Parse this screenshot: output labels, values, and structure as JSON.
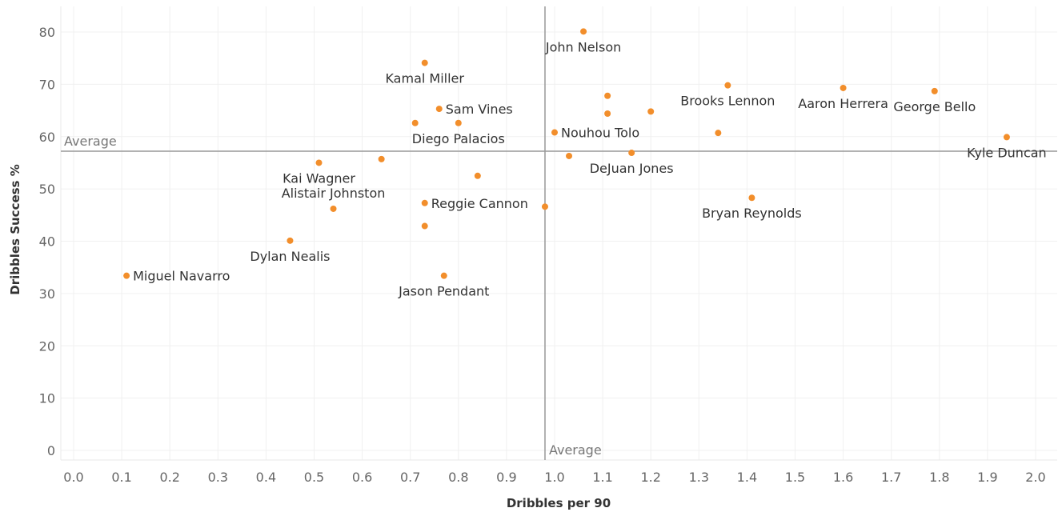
{
  "chart_data": {
    "type": "scatter",
    "xlabel": "Dribbles per 90",
    "ylabel": "Dribbles Success %",
    "xlim": [
      0.0,
      2.0
    ],
    "ylim": [
      0,
      80
    ],
    "x_ticks": [
      "0.0",
      "0.1",
      "0.2",
      "0.3",
      "0.4",
      "0.5",
      "0.6",
      "0.7",
      "0.8",
      "0.9",
      "1.0",
      "1.1",
      "1.2",
      "1.3",
      "1.4",
      "1.5",
      "1.6",
      "1.7",
      "1.8",
      "1.9",
      "2.0"
    ],
    "y_ticks": [
      "0",
      "10",
      "20",
      "30",
      "40",
      "50",
      "60",
      "70",
      "80"
    ],
    "grid": true,
    "point_color": "#f28e2b",
    "reference_lines": {
      "x_average": 0.98,
      "y_average": 57.2,
      "x_label": "Average",
      "y_label": "Average",
      "line_color": "#999999"
    },
    "points": [
      {
        "x": 1.06,
        "y": 80.1,
        "label": "John Nelson"
      },
      {
        "x": 0.73,
        "y": 74.1,
        "label": "Kamal Miller"
      },
      {
        "x": 1.36,
        "y": 69.8,
        "label": "Brooks Lennon"
      },
      {
        "x": 1.6,
        "y": 69.3,
        "label": "Aaron Herrera"
      },
      {
        "x": 1.79,
        "y": 68.7,
        "label": "George Bello"
      },
      {
        "x": 1.11,
        "y": 67.8,
        "label": ""
      },
      {
        "x": 0.76,
        "y": 65.3,
        "label": "Sam Vines"
      },
      {
        "x": 1.2,
        "y": 64.8,
        "label": ""
      },
      {
        "x": 1.11,
        "y": 64.4,
        "label": ""
      },
      {
        "x": 0.71,
        "y": 62.6,
        "label": ""
      },
      {
        "x": 0.8,
        "y": 62.6,
        "label": "Diego Palacios"
      },
      {
        "x": 1.0,
        "y": 60.8,
        "label": "Nouhou Tolo"
      },
      {
        "x": 1.34,
        "y": 60.7,
        "label": ""
      },
      {
        "x": 1.94,
        "y": 59.9,
        "label": "Kyle Duncan"
      },
      {
        "x": 1.16,
        "y": 56.9,
        "label": "DeJuan Jones"
      },
      {
        "x": 1.03,
        "y": 56.3,
        "label": ""
      },
      {
        "x": 0.64,
        "y": 55.7,
        "label": ""
      },
      {
        "x": 0.51,
        "y": 55.0,
        "label": "Kai Wagner"
      },
      {
        "x": 0.84,
        "y": 52.5,
        "label": ""
      },
      {
        "x": 1.41,
        "y": 48.3,
        "label": "Bryan Reynolds"
      },
      {
        "x": 0.73,
        "y": 47.3,
        "label": "Reggie Cannon"
      },
      {
        "x": 0.98,
        "y": 46.6,
        "label": ""
      },
      {
        "x": 0.54,
        "y": 46.2,
        "label": "Alistair Johnston"
      },
      {
        "x": 0.73,
        "y": 42.9,
        "label": ""
      },
      {
        "x": 0.45,
        "y": 40.1,
        "label": "Dylan Nealis"
      },
      {
        "x": 0.11,
        "y": 33.4,
        "label": "Miguel Navarro"
      },
      {
        "x": 0.77,
        "y": 33.4,
        "label": "Jason Pendant"
      }
    ]
  }
}
